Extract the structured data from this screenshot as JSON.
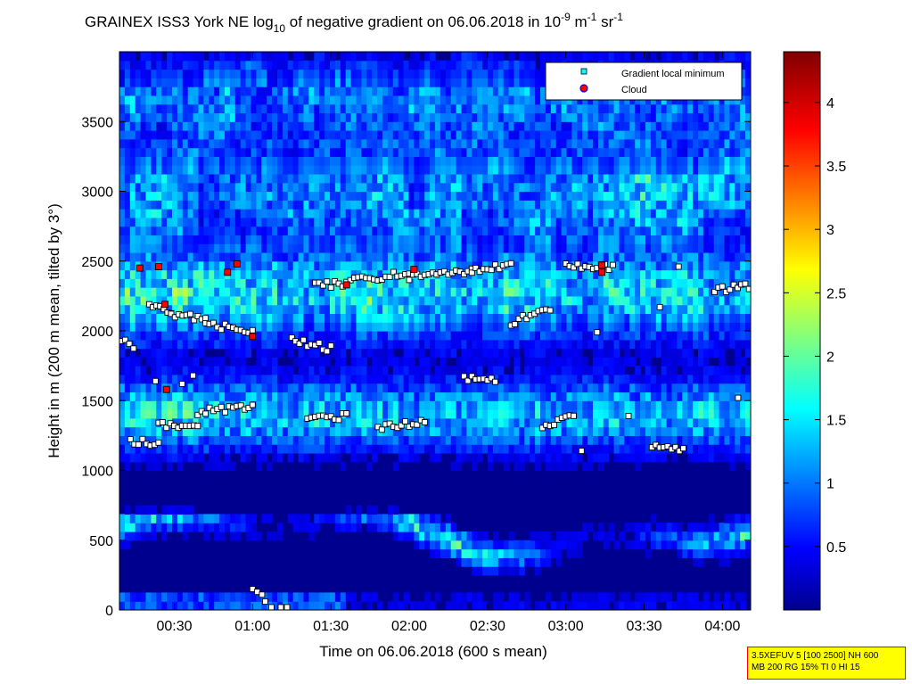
{
  "chart_data": {
    "type": "heatmap",
    "title": {
      "prefix": "GRAINEX ISS3 York NE log",
      "prefix_sub": "10",
      "middle": " of negative gradient on 06.06.2018 in 10",
      "exp1": "-9",
      "unit1": " m",
      "exp2": "-1",
      "unit2": " sr",
      "exp3": "-1"
    },
    "xlabel": "Time on 06.06.2018 (600 s mean)",
    "ylabel": "Height in m (200 m mean, tilted by 3°)",
    "xlim_hours": [
      0.15,
      4.18
    ],
    "ylim": [
      0,
      4000
    ],
    "x_ticks": [
      {
        "t": 0.5,
        "label": "00:30"
      },
      {
        "t": 1.0,
        "label": "01:00"
      },
      {
        "t": 1.5,
        "label": "01:30"
      },
      {
        "t": 2.0,
        "label": "02:00"
      },
      {
        "t": 2.5,
        "label": "02:30"
      },
      {
        "t": 3.0,
        "label": "03:00"
      },
      {
        "t": 3.5,
        "label": "03:30"
      },
      {
        "t": 4.0,
        "label": "04:00"
      }
    ],
    "y_ticks": [
      {
        "v": 0,
        "label": "0"
      },
      {
        "v": 500,
        "label": "500"
      },
      {
        "v": 1000,
        "label": "1000"
      },
      {
        "v": 1500,
        "label": "1500"
      },
      {
        "v": 2000,
        "label": "2000"
      },
      {
        "v": 2500,
        "label": "2500"
      },
      {
        "v": 3000,
        "label": "3000"
      },
      {
        "v": 3500,
        "label": "3500"
      }
    ],
    "colorbar": {
      "min": 0.0,
      "max": 4.4,
      "colormap": "jet",
      "ticks": [
        {
          "v": 0.5,
          "label": "0.5"
        },
        {
          "v": 1.0,
          "label": "1"
        },
        {
          "v": 1.5,
          "label": "1.5"
        },
        {
          "v": 2.0,
          "label": "2"
        },
        {
          "v": 2.5,
          "label": "2.5"
        },
        {
          "v": 3.0,
          "label": "3"
        },
        {
          "v": 3.5,
          "label": "3.5"
        },
        {
          "v": 4.0,
          "label": "4"
        }
      ]
    },
    "legend": {
      "placement": "top-right",
      "entries": [
        {
          "name": "Gradient local minimum",
          "marker": "square",
          "color": "#00ffff"
        },
        {
          "name": "Cloud",
          "marker": "circle",
          "color": "#ff0000"
        }
      ]
    },
    "gradient_minima_segments": [
      {
        "t0": 0.16,
        "t1": 0.24,
        "h0": 1940,
        "h1": 1880
      },
      {
        "t0": 0.22,
        "t1": 0.4,
        "h0": 1210,
        "h1": 1190
      },
      {
        "t0": 0.34,
        "t1": 0.48,
        "h0": 2180,
        "h1": 2140
      },
      {
        "t0": 0.48,
        "t1": 0.7,
        "h0": 2120,
        "h1": 2080
      },
      {
        "t0": 0.7,
        "t1": 1.0,
        "h0": 2050,
        "h1": 2000
      },
      {
        "t0": 0.4,
        "t1": 0.65,
        "h0": 1330,
        "h1": 1310
      },
      {
        "t0": 0.65,
        "t1": 1.0,
        "h0": 1420,
        "h1": 1450
      },
      {
        "t0": 1.25,
        "t1": 1.5,
        "h0": 1940,
        "h1": 1870
      },
      {
        "t0": 1.4,
        "t1": 1.6,
        "h0": 2350,
        "h1": 2320
      },
      {
        "t0": 1.6,
        "t1": 2.0,
        "h0": 2350,
        "h1": 2420
      },
      {
        "t0": 2.0,
        "t1": 2.4,
        "h0": 2380,
        "h1": 2430
      },
      {
        "t0": 2.4,
        "t1": 2.65,
        "h0": 2440,
        "h1": 2470
      },
      {
        "t0": 2.65,
        "t1": 2.9,
        "h0": 2060,
        "h1": 2160
      },
      {
        "t0": 2.35,
        "t1": 2.55,
        "h0": 1660,
        "h1": 1640
      },
      {
        "t0": 1.8,
        "t1": 2.1,
        "h0": 1310,
        "h1": 1340
      },
      {
        "t0": 3.0,
        "t1": 3.3,
        "h0": 2470,
        "h1": 2460
      },
      {
        "t0": 3.55,
        "t1": 3.75,
        "h0": 1170,
        "h1": 1160
      },
      {
        "t0": 3.95,
        "t1": 4.17,
        "h0": 2290,
        "h1": 2320
      },
      {
        "t0": 1.35,
        "t1": 1.6,
        "h0": 1360,
        "h1": 1390
      },
      {
        "t0": 2.85,
        "t1": 3.05,
        "h0": 1300,
        "h1": 1390
      }
    ],
    "gradient_minima_points": [
      {
        "t": 1.0,
        "h": 150
      },
      {
        "t": 1.03,
        "h": 130
      },
      {
        "t": 1.06,
        "h": 110
      },
      {
        "t": 1.08,
        "h": 60
      },
      {
        "t": 1.12,
        "h": 20
      },
      {
        "t": 1.18,
        "h": 20
      },
      {
        "t": 1.22,
        "h": 20
      },
      {
        "t": 0.38,
        "h": 1640
      },
      {
        "t": 0.55,
        "h": 1620
      },
      {
        "t": 0.62,
        "h": 1680
      },
      {
        "t": 3.2,
        "h": 1990
      },
      {
        "t": 3.72,
        "h": 2460
      },
      {
        "t": 3.6,
        "h": 2170
      },
      {
        "t": 3.1,
        "h": 1140
      },
      {
        "t": 3.4,
        "h": 1390
      },
      {
        "t": 4.1,
        "h": 1520
      }
    ],
    "cloud_points": [
      {
        "t": 0.28,
        "h": 2450
      },
      {
        "t": 0.4,
        "h": 2460
      },
      {
        "t": 0.44,
        "h": 2190
      },
      {
        "t": 0.45,
        "h": 1580
      },
      {
        "t": 0.84,
        "h": 2420
      },
      {
        "t": 0.9,
        "h": 2480
      },
      {
        "t": 1.0,
        "h": 1960
      },
      {
        "t": 1.6,
        "h": 2330
      },
      {
        "t": 2.03,
        "h": 2440
      },
      {
        "t": 3.23,
        "h": 2470
      },
      {
        "t": 3.23,
        "h": 2420
      }
    ]
  },
  "info_box": {
    "line1": "3.5XEFUV 5 [100 2500] NH 600",
    "line2": "MB 200 RG 15% TI 0 HI 15"
  }
}
